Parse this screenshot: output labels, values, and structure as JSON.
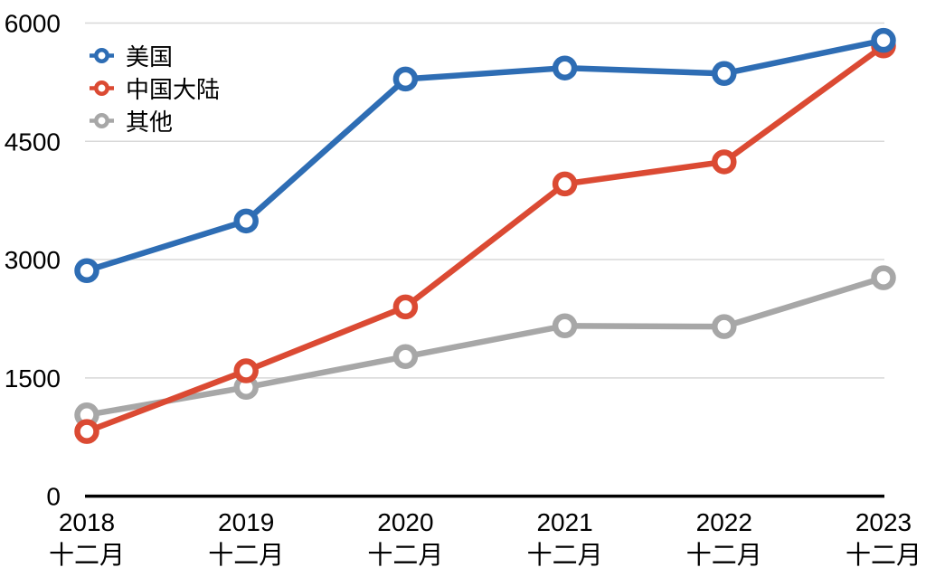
{
  "chart_data": {
    "type": "line",
    "categories": [
      "2018",
      "2019",
      "2020",
      "2021",
      "2022",
      "2023"
    ],
    "x_sublabel": "十二月",
    "series": [
      {
        "name": "美国",
        "color": "#2E6DB4",
        "values": [
          2860,
          3490,
          5290,
          5430,
          5360,
          5780
        ]
      },
      {
        "name": "中国大陆",
        "color": "#DB4A33",
        "values": [
          820,
          1590,
          2400,
          3960,
          4240,
          5710
        ]
      },
      {
        "name": "其他",
        "color": "#A7A7A7",
        "values": [
          1030,
          1380,
          1770,
          2160,
          2150,
          2770
        ]
      }
    ],
    "y_ticks": [
      0,
      1500,
      3000,
      4500,
      6000
    ],
    "ylim": [
      0,
      6000
    ],
    "grid": true,
    "gridline_color": "#D8D8D8",
    "axis_color": "#000000",
    "legend_position": "top-left",
    "marker": "open-circle"
  }
}
